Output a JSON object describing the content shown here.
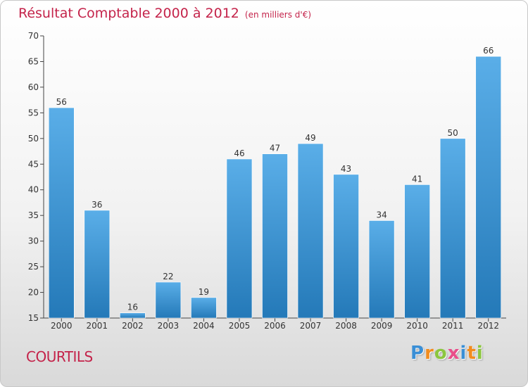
{
  "chart_data": {
    "type": "bar",
    "title": "Résultat Comptable 2000 à 2012",
    "unit_label": "(en milliers d'€)",
    "categories": [
      "2000",
      "2001",
      "2002",
      "2003",
      "2004",
      "2005",
      "2006",
      "2007",
      "2008",
      "2009",
      "2010",
      "2011",
      "2012"
    ],
    "values": [
      56,
      36,
      16,
      22,
      19,
      46,
      47,
      49,
      43,
      34,
      41,
      50,
      66
    ],
    "ylim": [
      15,
      70
    ],
    "yticks": [
      15,
      20,
      25,
      30,
      35,
      40,
      45,
      50,
      55,
      60,
      65,
      70
    ],
    "grid": false,
    "xlabel": "",
    "ylabel": ""
  },
  "commune": "COURTILS",
  "brand": {
    "letters": [
      "P",
      "r",
      "o",
      "x",
      "i",
      "t",
      "i"
    ],
    "colors": [
      "#3a8fd6",
      "#f28c1e",
      "#8cc63f",
      "#e94e8a",
      "#3a8fd6",
      "#f28c1e",
      "#8cc63f"
    ]
  },
  "colors": {
    "accent": "#c4234a",
    "bar_top": "#5aaee8",
    "bar_bottom": "#2479b8",
    "axis": "#444444"
  }
}
